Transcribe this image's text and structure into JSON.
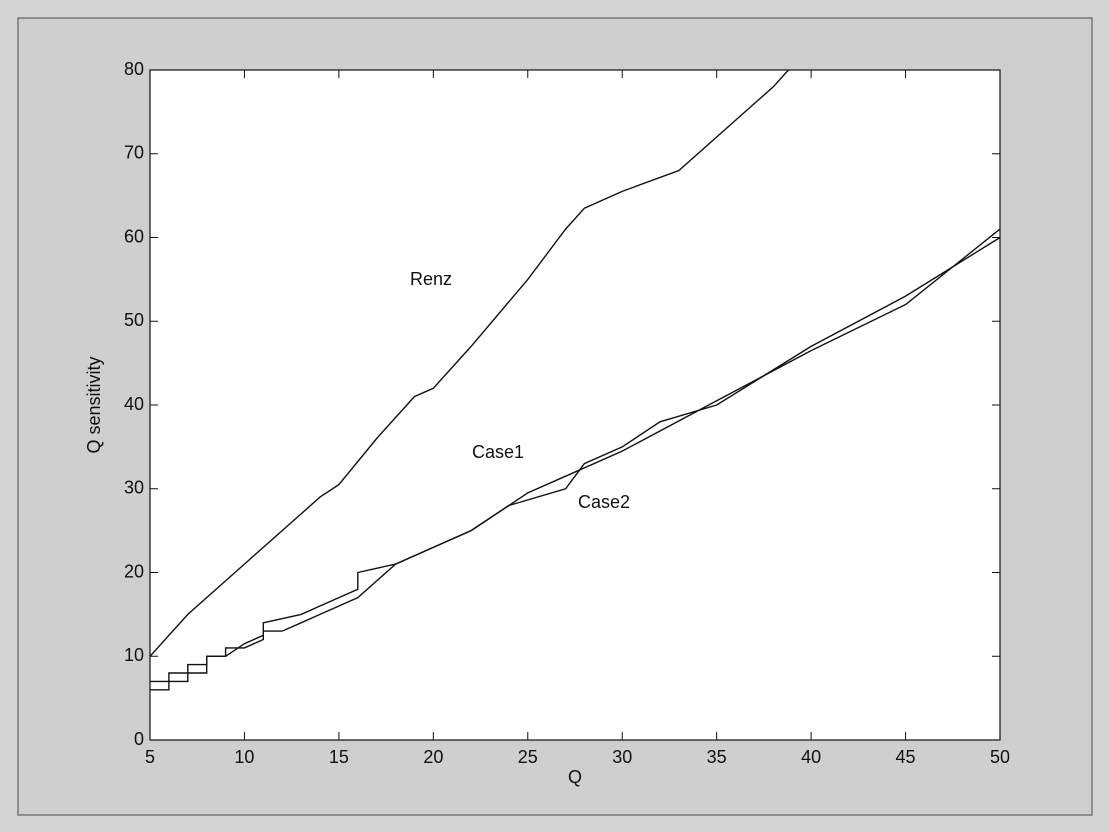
{
  "chart_data": {
    "type": "line",
    "xlabel": "Q",
    "ylabel": "Q sensitivity",
    "xlim": [
      5,
      50
    ],
    "ylim": [
      0,
      80
    ],
    "xticks": [
      5,
      10,
      15,
      20,
      25,
      30,
      35,
      40,
      45,
      50
    ],
    "yticks": [
      0,
      10,
      20,
      30,
      40,
      50,
      60,
      70,
      80
    ],
    "series": [
      {
        "name": "Renz",
        "color": "#111111",
        "x": [
          5,
          7,
          10,
          12,
          14,
          15,
          17,
          19,
          20,
          22,
          25,
          27,
          28,
          30,
          33,
          35,
          37,
          38,
          38.8
        ],
        "values": [
          10,
          15,
          21,
          25,
          29,
          30.5,
          36,
          41,
          42,
          47,
          55,
          61,
          63.5,
          65.5,
          68,
          72,
          76,
          78,
          80
        ]
      },
      {
        "name": "Case1",
        "color": "#111111",
        "x": [
          5,
          6,
          6,
          7,
          7,
          8,
          8,
          9,
          10,
          11,
          11,
          13,
          14,
          16,
          16,
          18,
          20,
          22,
          25,
          27,
          30,
          35,
          40,
          45,
          50
        ],
        "values": [
          7,
          7,
          8,
          8,
          9,
          9,
          10,
          10,
          11.5,
          12.5,
          14,
          15,
          16,
          18,
          20,
          21,
          23,
          25,
          29.5,
          31.5,
          34.5,
          40.5,
          46.5,
          52,
          61
        ]
      },
      {
        "name": "Case2",
        "color": "#111111",
        "x": [
          5,
          6,
          6,
          7,
          7,
          8,
          8,
          9,
          9,
          10,
          11,
          11,
          12,
          13,
          14,
          16,
          18,
          20,
          22,
          24,
          27,
          28,
          30,
          32,
          35,
          40,
          45,
          50
        ],
        "values": [
          6,
          6,
          7,
          7,
          8,
          8,
          10,
          10,
          11,
          11,
          12,
          13,
          13,
          14,
          15,
          17,
          21,
          23,
          25,
          28,
          30,
          33,
          35,
          38,
          40,
          47,
          53,
          60
        ]
      }
    ]
  }
}
